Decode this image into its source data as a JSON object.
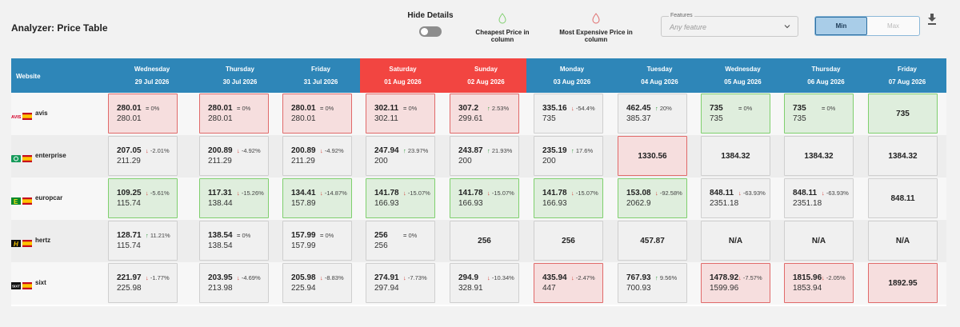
{
  "header": {
    "title": "Analyzer: Price Table",
    "hide_details_label": "Hide Details",
    "legend_cheapest": "Cheapest Price in column",
    "legend_most_expensive": "Most Expensive Price in column",
    "features_label": "Features",
    "features_placeholder": "Any feature",
    "min_label": "Min",
    "max_label": "Max",
    "colors": {
      "cheap": "#7fcf6e",
      "expensive": "#e06a6a",
      "accent": "#2e86b8",
      "weekend": "#f24541"
    }
  },
  "table": {
    "website_header": "Website",
    "columns": [
      {
        "day": "Wednesday",
        "date": "29 Jul 2026",
        "weekend": false
      },
      {
        "day": "Thursday",
        "date": "30 Jul 2026",
        "weekend": false
      },
      {
        "day": "Friday",
        "date": "31 Jul 2026",
        "weekend": false
      },
      {
        "day": "Saturday",
        "date": "01 Aug 2026",
        "weekend": true
      },
      {
        "day": "Sunday",
        "date": "02 Aug 2026",
        "weekend": true
      },
      {
        "day": "Monday",
        "date": "03 Aug 2026",
        "weekend": false
      },
      {
        "day": "Tuesday",
        "date": "04 Aug 2026",
        "weekend": false
      },
      {
        "day": "Wednesday",
        "date": "05 Aug 2026",
        "weekend": false
      },
      {
        "day": "Thursday",
        "date": "06 Aug 2026",
        "weekend": false
      },
      {
        "day": "Friday",
        "date": "07 Aug 2026",
        "weekend": false
      }
    ],
    "rows": [
      {
        "site": "avis",
        "logo": "avis-logo",
        "cells": [
          {
            "price": "280.01",
            "prev": "280.01",
            "dir": "eq",
            "change": "0%",
            "status": "red"
          },
          {
            "price": "280.01",
            "prev": "280.01",
            "dir": "eq",
            "change": "0%",
            "status": "red"
          },
          {
            "price": "280.01",
            "prev": "280.01",
            "dir": "eq",
            "change": "0%",
            "status": "red"
          },
          {
            "price": "302.11",
            "prev": "302.11",
            "dir": "eq",
            "change": "0%",
            "status": "red"
          },
          {
            "price": "307.2",
            "prev": "299.61",
            "dir": "up",
            "change": "2.53%",
            "status": "red"
          },
          {
            "price": "335.16",
            "prev": "735",
            "dir": "down",
            "change": "-54.4%",
            "status": "none"
          },
          {
            "price": "462.45",
            "prev": "385.37",
            "dir": "up",
            "change": "20%",
            "status": "none"
          },
          {
            "price": "735",
            "prev": "735",
            "dir": "eq",
            "change": "0%",
            "status": "green"
          },
          {
            "price": "735",
            "prev": "735",
            "dir": "eq",
            "change": "0%",
            "status": "green"
          },
          {
            "price": "735",
            "prev": "",
            "dir": "",
            "change": "",
            "status": "green"
          }
        ]
      },
      {
        "site": "enterprise",
        "logo": "enterprise-logo",
        "cells": [
          {
            "price": "207.05",
            "prev": "211.29",
            "dir": "down",
            "change": "-2.01%",
            "status": "none"
          },
          {
            "price": "200.89",
            "prev": "211.29",
            "dir": "down",
            "change": "-4.92%",
            "status": "none"
          },
          {
            "price": "200.89",
            "prev": "211.29",
            "dir": "down",
            "change": "-4.92%",
            "status": "none"
          },
          {
            "price": "247.94",
            "prev": "200",
            "dir": "up",
            "change": "23.97%",
            "status": "none"
          },
          {
            "price": "243.87",
            "prev": "200",
            "dir": "up",
            "change": "21.93%",
            "status": "none"
          },
          {
            "price": "235.19",
            "prev": "200",
            "dir": "up",
            "change": "17.6%",
            "status": "none"
          },
          {
            "price": "1330.56",
            "prev": "",
            "dir": "",
            "change": "",
            "status": "red"
          },
          {
            "price": "1384.32",
            "prev": "",
            "dir": "",
            "change": "",
            "status": "none"
          },
          {
            "price": "1384.32",
            "prev": "",
            "dir": "",
            "change": "",
            "status": "none"
          },
          {
            "price": "1384.32",
            "prev": "",
            "dir": "",
            "change": "",
            "status": "none"
          }
        ]
      },
      {
        "site": "europcar",
        "logo": "europcar-logo",
        "cells": [
          {
            "price": "109.25",
            "prev": "115.74",
            "dir": "down",
            "change": "-5.61%",
            "status": "green"
          },
          {
            "price": "117.31",
            "prev": "138.44",
            "dir": "down",
            "change": "-15.26%",
            "status": "green"
          },
          {
            "price": "134.41",
            "prev": "157.89",
            "dir": "down",
            "change": "-14.87%",
            "status": "green"
          },
          {
            "price": "141.78",
            "prev": "166.93",
            "dir": "down",
            "change": "-15.07%",
            "status": "green"
          },
          {
            "price": "141.78",
            "prev": "166.93",
            "dir": "down",
            "change": "-15.07%",
            "status": "green"
          },
          {
            "price": "141.78",
            "prev": "166.93",
            "dir": "down",
            "change": "-15.07%",
            "status": "green"
          },
          {
            "price": "153.08",
            "prev": "2062.9",
            "dir": "down",
            "change": "-92.58%",
            "status": "green"
          },
          {
            "price": "848.11",
            "prev": "2351.18",
            "dir": "down",
            "change": "-63.93%",
            "status": "none"
          },
          {
            "price": "848.11",
            "prev": "2351.18",
            "dir": "down",
            "change": "-63.93%",
            "status": "none"
          },
          {
            "price": "848.11",
            "prev": "",
            "dir": "",
            "change": "",
            "status": "none"
          }
        ]
      },
      {
        "site": "hertz",
        "logo": "hertz-logo",
        "cells": [
          {
            "price": "128.71",
            "prev": "115.74",
            "dir": "up",
            "change": "11.21%",
            "status": "none"
          },
          {
            "price": "138.54",
            "prev": "138.54",
            "dir": "eq",
            "change": "0%",
            "status": "none"
          },
          {
            "price": "157.99",
            "prev": "157.99",
            "dir": "eq",
            "change": "0%",
            "status": "none"
          },
          {
            "price": "256",
            "prev": "256",
            "dir": "eq",
            "change": "0%",
            "status": "none"
          },
          {
            "price": "256",
            "prev": "",
            "dir": "",
            "change": "",
            "status": "none"
          },
          {
            "price": "256",
            "prev": "",
            "dir": "",
            "change": "",
            "status": "none"
          },
          {
            "price": "457.87",
            "prev": "",
            "dir": "",
            "change": "",
            "status": "none"
          },
          {
            "price": "N/A",
            "prev": "",
            "dir": "",
            "change": "",
            "status": "none"
          },
          {
            "price": "N/A",
            "prev": "",
            "dir": "",
            "change": "",
            "status": "none"
          },
          {
            "price": "N/A",
            "prev": "",
            "dir": "",
            "change": "",
            "status": "none"
          }
        ]
      },
      {
        "site": "sixt",
        "logo": "sixt-logo",
        "cells": [
          {
            "price": "221.97",
            "prev": "225.98",
            "dir": "down",
            "change": "-1.77%",
            "status": "none"
          },
          {
            "price": "203.95",
            "prev": "213.98",
            "dir": "down",
            "change": "-4.69%",
            "status": "none"
          },
          {
            "price": "205.98",
            "prev": "225.94",
            "dir": "down",
            "change": "-8.83%",
            "status": "none"
          },
          {
            "price": "274.91",
            "prev": "297.94",
            "dir": "down",
            "change": "-7.73%",
            "status": "none"
          },
          {
            "price": "294.9",
            "prev": "328.91",
            "dir": "down",
            "change": "-10.34%",
            "status": "none"
          },
          {
            "price": "435.94",
            "prev": "447",
            "dir": "down",
            "change": "-2.47%",
            "status": "red"
          },
          {
            "price": "767.93",
            "prev": "700.93",
            "dir": "up",
            "change": "9.56%",
            "status": "none"
          },
          {
            "price": "1478.92",
            "prev": "1599.96",
            "dir": "down",
            "change": "-7.57%",
            "status": "red"
          },
          {
            "price": "1815.96",
            "prev": "1853.94",
            "dir": "down",
            "change": "-2.05%",
            "status": "red"
          },
          {
            "price": "1892.95",
            "prev": "",
            "dir": "",
            "change": "",
            "status": "red"
          }
        ]
      }
    ]
  }
}
